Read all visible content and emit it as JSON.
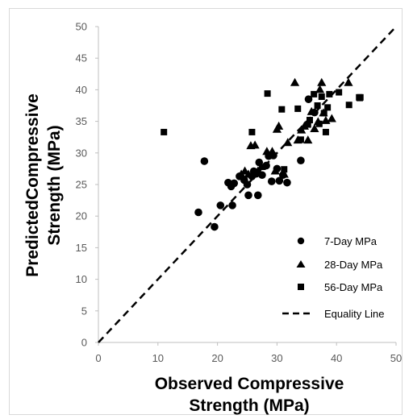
{
  "chart_data": {
    "type": "scatter",
    "xlabel_lines": [
      "Observed Compressive",
      "Strength (MPa)"
    ],
    "ylabel_lines": [
      "PredictedCompressive",
      "Strength (MPa)"
    ],
    "xlim": [
      0,
      50
    ],
    "ylim": [
      0,
      50
    ],
    "xticks": [
      0,
      10,
      20,
      30,
      40,
      50
    ],
    "yticks": [
      0,
      5,
      10,
      15,
      20,
      25,
      30,
      35,
      40,
      45,
      50
    ],
    "grid": false,
    "legend_position": "bottom-right",
    "series": [
      {
        "name": "7-Day MPa",
        "marker": "circle",
        "color": "#000000",
        "points": [
          [
            16.8,
            20.6
          ],
          [
            17.8,
            28.7
          ],
          [
            19.5,
            18.3
          ],
          [
            20.5,
            21.7
          ],
          [
            21.8,
            25.3
          ],
          [
            22.3,
            24.7
          ],
          [
            22.5,
            21.7
          ],
          [
            22.8,
            25.2
          ],
          [
            23.7,
            26.3
          ],
          [
            24.5,
            25.7
          ],
          [
            25.0,
            25.0
          ],
          [
            25.2,
            23.3
          ],
          [
            25.8,
            26.3
          ],
          [
            26.1,
            27.1
          ],
          [
            26.5,
            26.7
          ],
          [
            26.8,
            23.3
          ],
          [
            27.0,
            28.5
          ],
          [
            27.5,
            26.5
          ],
          [
            28.2,
            28.0
          ],
          [
            28.6,
            29.5
          ],
          [
            29.1,
            25.5
          ],
          [
            29.4,
            29.6
          ],
          [
            30.0,
            27.5
          ],
          [
            30.4,
            25.6
          ],
          [
            31.0,
            26.5
          ],
          [
            31.7,
            25.3
          ],
          [
            34.0,
            28.8
          ],
          [
            35.3,
            38.5
          ],
          [
            36.3,
            36.4
          ]
        ]
      },
      {
        "name": "28-Day MPa",
        "marker": "triangle",
        "color": "#000000",
        "points": [
          [
            24.0,
            26.6
          ],
          [
            24.6,
            27.1
          ],
          [
            25.2,
            26.6
          ],
          [
            25.6,
            31.1
          ],
          [
            26.3,
            31.2
          ],
          [
            26.8,
            27.1
          ],
          [
            27.4,
            27.8
          ],
          [
            28.3,
            30.2
          ],
          [
            29.2,
            30.2
          ],
          [
            29.7,
            27.1
          ],
          [
            30.0,
            33.7
          ],
          [
            30.3,
            34.2
          ],
          [
            31.2,
            26.6
          ],
          [
            31.8,
            31.6
          ],
          [
            33.0,
            41.1
          ],
          [
            33.5,
            32.0
          ],
          [
            34.1,
            33.6
          ],
          [
            34.6,
            34.2
          ],
          [
            35.2,
            32.0
          ],
          [
            35.8,
            36.5
          ],
          [
            36.3,
            33.8
          ],
          [
            36.9,
            34.9
          ],
          [
            37.2,
            40.0
          ],
          [
            37.5,
            41.1
          ],
          [
            37.8,
            36.3
          ],
          [
            38.2,
            35.1
          ],
          [
            39.2,
            35.4
          ],
          [
            42.0,
            41.1
          ]
        ]
      },
      {
        "name": "56-Day MPa",
        "marker": "square",
        "color": "#000000",
        "points": [
          [
            11.0,
            33.3
          ],
          [
            25.8,
            33.3
          ],
          [
            28.4,
            39.4
          ],
          [
            30.8,
            36.9
          ],
          [
            31.2,
            27.4
          ],
          [
            33.5,
            37.0
          ],
          [
            34.0,
            32.1
          ],
          [
            35.2,
            34.5
          ],
          [
            35.5,
            35.2
          ],
          [
            36.2,
            39.3
          ],
          [
            36.8,
            37.5
          ],
          [
            37.1,
            34.6
          ],
          [
            37.5,
            38.9
          ],
          [
            37.9,
            36.3
          ],
          [
            38.2,
            33.3
          ],
          [
            38.5,
            37.2
          ],
          [
            38.8,
            39.3
          ],
          [
            40.4,
            39.6
          ],
          [
            42.1,
            37.6
          ],
          [
            43.8,
            38.8
          ],
          [
            43.9,
            38.7
          ],
          [
            44.0,
            38.8
          ]
        ]
      }
    ],
    "reference_line": {
      "name": "Equality Line",
      "style": "dashed",
      "from": [
        0,
        0
      ],
      "to": [
        50,
        50
      ]
    }
  }
}
